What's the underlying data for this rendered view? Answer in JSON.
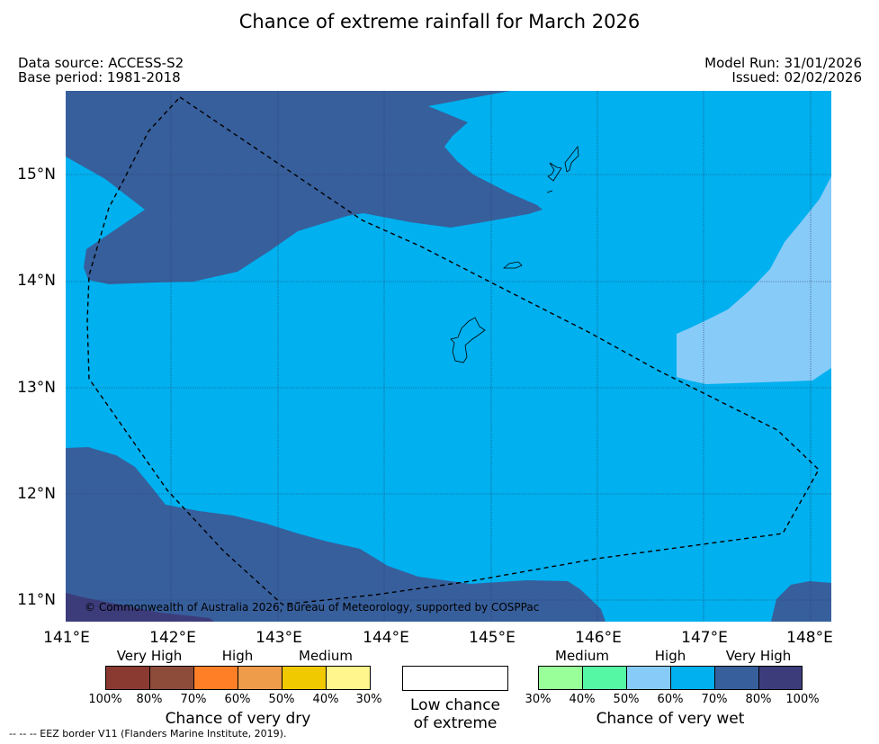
{
  "title": "Chance of extreme rainfall for March 2026",
  "meta": {
    "data_source": "Data source: ACCESS-S2",
    "base_period": "Base period: 1981-2018",
    "model_run": "Model Run: 31/01/2026",
    "issued": "Issued: 02/02/2026"
  },
  "map": {
    "lat_ticks": [
      "15°N",
      "14°N",
      "13°N",
      "12°N",
      "11°N"
    ],
    "lon_ticks": [
      "141°E",
      "142°E",
      "143°E",
      "144°E",
      "145°E",
      "146°E",
      "147°E",
      "148°E"
    ],
    "copyright": "© Commonwealth of Australia 2026, Bureau of Meteorology, supported by COSPPac",
    "fill_colors": {
      "wet_60_70": "#00b0ef",
      "wet_70_80": "#375f9c",
      "wet_80_100": "#3d3c7b",
      "wet_50_60": "#87cbf9"
    }
  },
  "legend": {
    "dry": {
      "title": "Chance of very dry",
      "categories": [
        "Very High",
        "High",
        "Medium"
      ],
      "ticks": [
        "100%",
        "80%",
        "70%",
        "60%",
        "50%",
        "40%",
        "30%"
      ],
      "colors": [
        "#8b3a31",
        "#8d4b3a",
        "#ff7f27",
        "#ee9b4a",
        "#f0c900",
        "#fff68d"
      ]
    },
    "low": {
      "label_line1": "Low chance",
      "label_line2": "of extreme",
      "color": "#ffffff"
    },
    "wet": {
      "title": "Chance of very wet",
      "categories": [
        "Medium",
        "High",
        "Very High"
      ],
      "ticks": [
        "30%",
        "40%",
        "50%",
        "60%",
        "70%",
        "80%",
        "100%"
      ],
      "colors": [
        "#99ff99",
        "#55f7a5",
        "#87cbf9",
        "#00b0ef",
        "#375f9c",
        "#3d3c7b"
      ]
    }
  },
  "footer": "-- -- -- EEZ border V11 (Flanders Marine Institute, 2019)."
}
